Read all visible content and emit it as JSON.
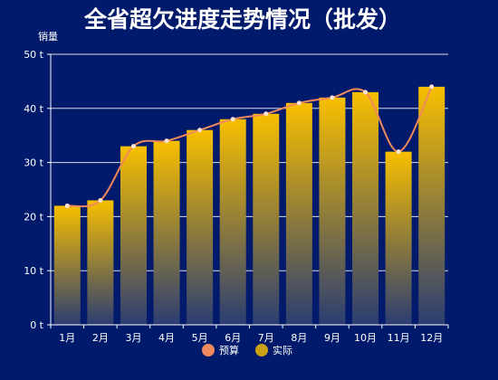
{
  "colors": {
    "background": "#011a6b",
    "bar_top": "#f8bf00",
    "bar_bottom": "#2b3d72",
    "line": "#f08a5d",
    "point": "#fbe3d6",
    "grid": "#ffffff",
    "text": "#ffffff"
  },
  "chart_data": {
    "type": "bar",
    "title": "全省超欠进度走势情况（批发）",
    "ylabel": "销量",
    "unit": "t",
    "categories": [
      "1月",
      "2月",
      "3月",
      "4月",
      "5月",
      "6月",
      "7月",
      "8月",
      "9月",
      "10月",
      "11月",
      "12月"
    ],
    "ylim": [
      0,
      50
    ],
    "yticks": [
      "0 t",
      "10 t",
      "20 t",
      "30 t",
      "40 t",
      "50 t"
    ],
    "grid": true,
    "legend_position": "bottom",
    "series": [
      {
        "name": "预算",
        "kind": "smooth-line",
        "values": [
          22,
          23,
          33,
          34,
          36,
          38,
          39,
          41,
          42,
          43,
          32,
          44
        ]
      },
      {
        "name": "实际",
        "kind": "bar",
        "values": [
          22,
          23,
          33,
          34,
          36,
          38,
          39,
          41,
          42,
          43,
          32,
          44
        ]
      }
    ]
  }
}
